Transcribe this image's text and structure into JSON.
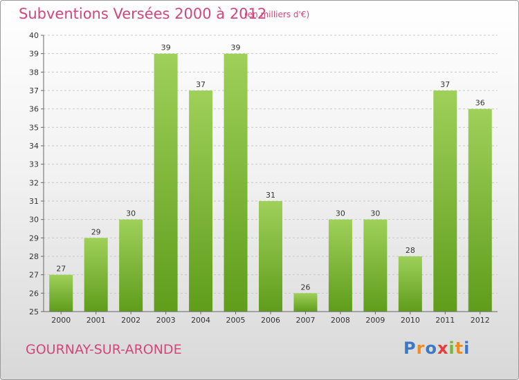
{
  "chart_data": {
    "type": "bar",
    "title": "Subventions Versées 2000 à 2012",
    "subtitle": "(en milliers d'€)",
    "categories": [
      "2000",
      "2001",
      "2002",
      "2003",
      "2004",
      "2005",
      "2006",
      "2007",
      "2008",
      "2009",
      "2010",
      "2011",
      "2012"
    ],
    "values": [
      27,
      29,
      30,
      39,
      37,
      39,
      31,
      26,
      30,
      30,
      28,
      37,
      36
    ],
    "ylim": [
      25,
      40
    ],
    "yticks": [
      25,
      26,
      27,
      28,
      29,
      30,
      31,
      32,
      33,
      34,
      35,
      36,
      37,
      38,
      39,
      40
    ],
    "grid": "horizontal dashed",
    "bar_color_top": "#9fd05a",
    "bar_color_bottom": "#5f9d1b"
  },
  "place_name": "GOURNAY-SUR-ARONDE",
  "logo": {
    "letters": [
      "P",
      "r",
      "o",
      "x",
      "i",
      "t",
      "i"
    ],
    "colors": [
      "#3c78c8",
      "#f08c1e",
      "#3c78c8",
      "#e63c3c",
      "#74b83a",
      "#f08c1e",
      "#3c78c8"
    ]
  }
}
